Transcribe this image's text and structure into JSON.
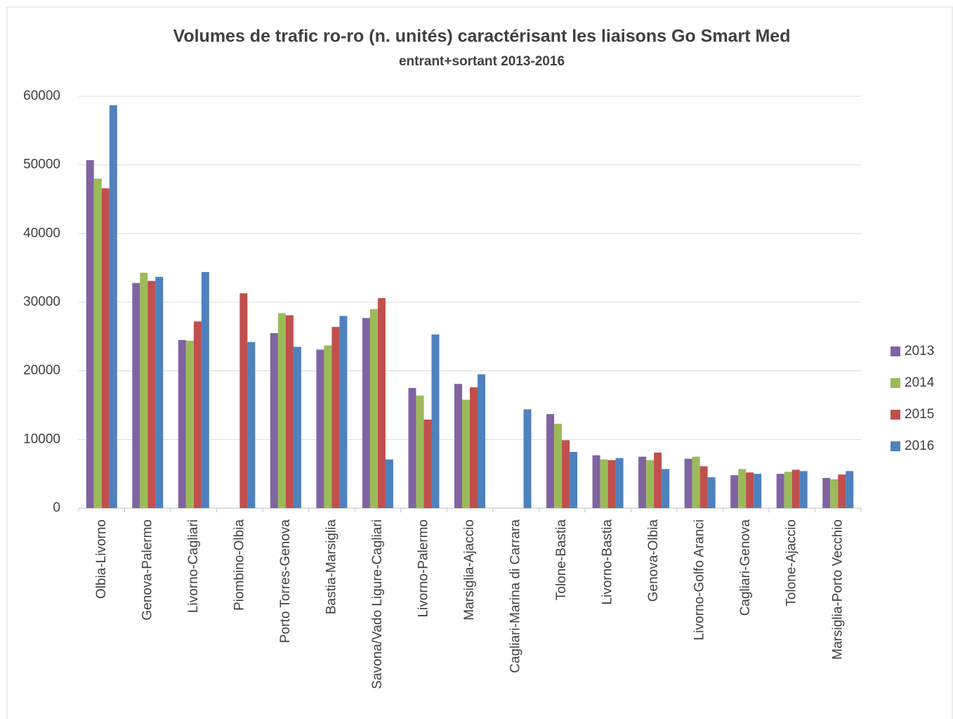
{
  "chart_data": {
    "type": "bar",
    "title": "Volumes de trafic ro-ro (n. unités) caractérisant les liaisons Go Smart Med",
    "subtitle": "entrant+sortant 2013-2016",
    "categories": [
      "Olbia-Livorno",
      "Genova-Palermo",
      "Livorno-Cagliari",
      "Piombino-Olbia",
      "Porto Torres-Genova",
      "Bastia-Marsiglia",
      "Savona/Vado Ligure-Cagliari",
      "Livorno-Palermo",
      "Marsiglia-Ajaccio",
      "Cagliari-Marina di Carrara",
      "Tolone-Bastia",
      "Livorno-Bastia",
      "Genova-Olbia",
      "Livorno-Golfo Aranci",
      "Cagliari-Genova",
      "Tolone-Ajaccio",
      "Marsiglia-Porto Vecchio"
    ],
    "series": [
      {
        "name": "2013",
        "color": "#8064a2",
        "values": [
          50700,
          32800,
          24500,
          0,
          25500,
          23100,
          27700,
          17500,
          18100,
          0,
          13700,
          7700,
          7500,
          7200,
          4800,
          5000,
          4400
        ]
      },
      {
        "name": "2014",
        "color": "#9bbb59",
        "values": [
          48000,
          34300,
          24400,
          0,
          28400,
          23700,
          29000,
          16400,
          15800,
          0,
          12300,
          7100,
          7000,
          7500,
          5700,
          5300,
          4200
        ]
      },
      {
        "name": "2015",
        "color": "#c0504d",
        "values": [
          46600,
          33100,
          27200,
          31300,
          28100,
          26400,
          30600,
          12900,
          17600,
          0,
          9900,
          7000,
          8100,
          6100,
          5200,
          5600,
          4900
        ]
      },
      {
        "name": "2016",
        "color": "#4f81bd",
        "values": [
          58700,
          33700,
          34400,
          24200,
          23500,
          28000,
          7100,
          25300,
          19500,
          14400,
          8200,
          7300,
          5700,
          4500,
          5000,
          5400,
          5400
        ]
      }
    ],
    "ylim": [
      0,
      60000
    ],
    "yticks": [
      0,
      10000,
      20000,
      30000,
      40000,
      50000,
      60000
    ],
    "grid": true,
    "legend": "right"
  }
}
